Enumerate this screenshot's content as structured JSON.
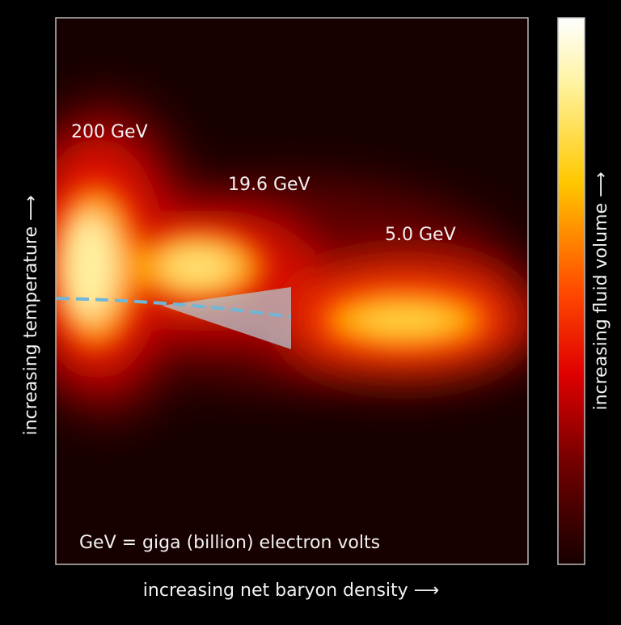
{
  "labels": [
    "200 GeV",
    "19.6 GeV",
    "5.0 GeV"
  ],
  "note": "GeV = giga (billion) electron volts",
  "axes": {
    "x": "increasing net baryon density ⟶",
    "y": "increasing temperature ⟶",
    "colorbar": "increasing fluid volume ⟶"
  }
}
